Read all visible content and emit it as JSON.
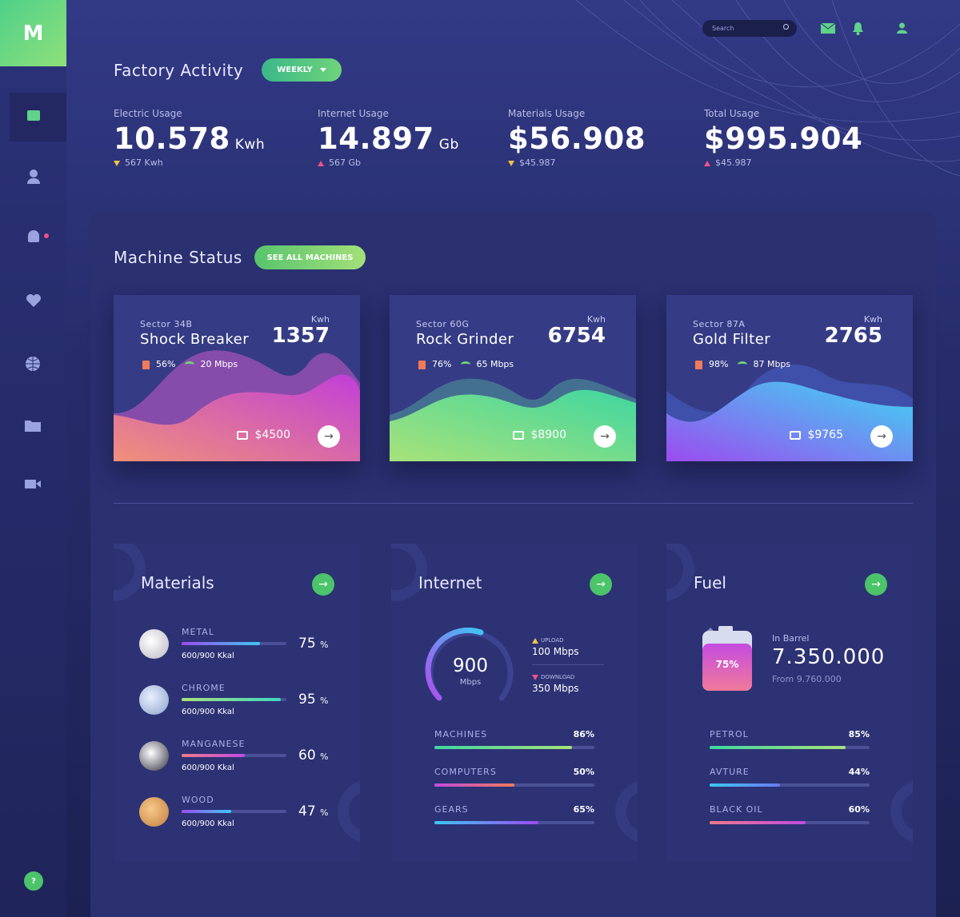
{
  "logo": "M",
  "search": {
    "placeholder": "Search"
  },
  "header": {
    "title": "Factory Activity",
    "period": "WEEKLY"
  },
  "stats": [
    {
      "label": "Electric Usage",
      "value": "10.578",
      "unit": "Kwh",
      "delta": "567 Kwh",
      "trend": "down"
    },
    {
      "label": "Internet Usage",
      "value": "14.897",
      "unit": "Gb",
      "delta": "567 Gb",
      "trend": "up"
    },
    {
      "label": "Materials Usage",
      "value": "$56.908",
      "delta": "$45.987",
      "trend": "down"
    },
    {
      "label": "Total Usage",
      "value": "$995.904",
      "delta": "$45.987",
      "trend": "up"
    }
  ],
  "machine_status": {
    "title": "Machine Status",
    "button": "SEE ALL MACHINES",
    "machines": [
      {
        "sector": "Sector 34B",
        "name": "Shock Breaker",
        "unit": "Kwh",
        "value": 1357,
        "fuel": "56%",
        "speed": "20 Mbps",
        "price": "$4500"
      },
      {
        "sector": "Sector 60G",
        "name": "Rock Grinder",
        "unit": "Kwh",
        "value": 6754,
        "fuel": "76%",
        "speed": "65 Mbps",
        "price": "$8900"
      },
      {
        "sector": "Sector 87A",
        "name": "Gold Filter",
        "unit": "Kwh",
        "value": 2765,
        "fuel": "98%",
        "speed": "87 Mbps",
        "price": "$9765"
      }
    ]
  },
  "materials": {
    "title": "Materials",
    "unit": "%",
    "items": [
      {
        "name": "METAL",
        "detail": "600/900 Kkal",
        "percent": 75
      },
      {
        "name": "CHROME",
        "detail": "600/900 Kkal",
        "percent": 95
      },
      {
        "name": "MANGANESE",
        "detail": "600/900 Kkal",
        "percent": 60
      },
      {
        "name": "WOOD",
        "detail": "600/900 Kkal",
        "percent": 47
      }
    ]
  },
  "internet": {
    "title": "Internet",
    "speed": "900",
    "speed_unit": "Mbps",
    "upload_label": "UPLOAD",
    "upload": "100 Mbps",
    "download_label": "DOWNLOAD",
    "download": "350 Mbps",
    "bars": [
      {
        "name": "MACHINES",
        "value": 86,
        "label": "86%"
      },
      {
        "name": "COMPUTERS",
        "value": 50,
        "label": "50%"
      },
      {
        "name": "GEARS",
        "value": 65,
        "label": "65%"
      }
    ]
  },
  "fuel": {
    "title": "Fuel",
    "level": "75%",
    "barrel_label": "In Barrel",
    "barrel": "7.350.000",
    "from": "From 9.760.000",
    "bars": [
      {
        "name": "PETROL",
        "value": 85,
        "label": "85%"
      },
      {
        "name": "AVTURE",
        "value": 44,
        "label": "44%"
      },
      {
        "name": "BLACK OIL",
        "value": 60,
        "label": "60%"
      }
    ]
  },
  "help": "?"
}
